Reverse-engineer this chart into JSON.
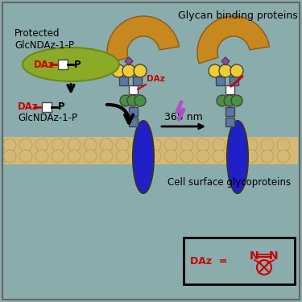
{
  "bg_color": "#8aacad",
  "title_text": "Glycan binding proteins",
  "glycoprotein_text": "Cell surface glycoproteins",
  "protected_text": "Protected\nGlcNDAz-1-P",
  "label_365nm": "365 nm",
  "glcndaz_bottom": "GlcNDAz-1-P",
  "colors": {
    "purple_diamond": "#9944aa",
    "yellow_circle": "#f0cc30",
    "blue_square": "#5878a8",
    "white_square": "#ffffff",
    "green_circle": "#4a9040",
    "blue_oval": "#2020c8",
    "membrane_tan": "#d4b878",
    "membrane_outline": "#b89840",
    "protein_brown": "#c88820",
    "protein_brown_edge": "#8a5c10",
    "green_ellipse_fill": "#8aaa28",
    "green_ellipse_edge": "#6a8a18",
    "red": "#cc0000",
    "black": "#000000",
    "lightning_purple": "#b050c0",
    "arrow_black": "#111111"
  },
  "fig_w": 3.75,
  "fig_h": 3.75,
  "dpi": 100,
  "xlim": [
    0,
    375
  ],
  "ylim": [
    0,
    375
  ]
}
